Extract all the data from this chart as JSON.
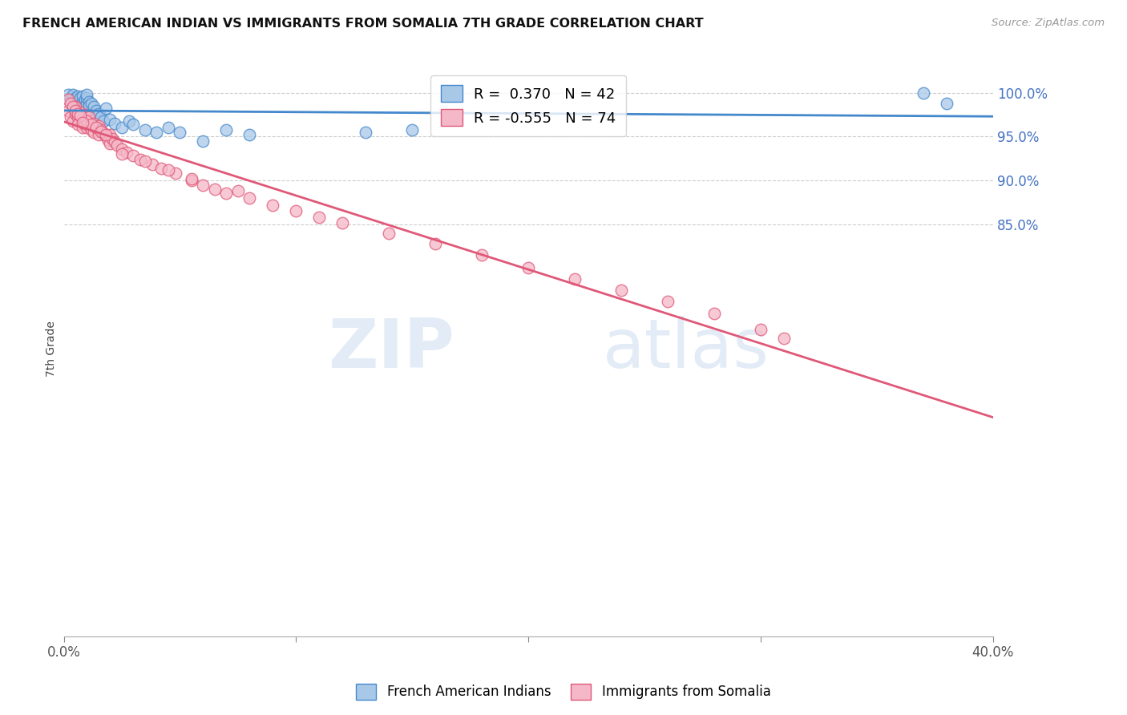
{
  "title": "FRENCH AMERICAN INDIAN VS IMMIGRANTS FROM SOMALIA 7TH GRADE CORRELATION CHART",
  "source": "Source: ZipAtlas.com",
  "ylabel": "7th Grade",
  "ytick_labels": [
    "100.0%",
    "95.0%",
    "90.0%",
    "85.0%"
  ],
  "ytick_values": [
    1.0,
    0.95,
    0.9,
    0.85
  ],
  "xlim": [
    0.0,
    0.4
  ],
  "ylim": [
    0.38,
    1.035
  ],
  "blue_R": 0.37,
  "blue_N": 42,
  "pink_R": -0.555,
  "pink_N": 74,
  "blue_color": "#a8c8e8",
  "pink_color": "#f5b8c8",
  "blue_line_color": "#4488cc",
  "pink_line_color": "#e05878",
  "watermark_zip": "ZIP",
  "watermark_atlas": "atlas",
  "legend_label_blue": "French American Indians",
  "legend_label_pink": "Immigrants from Somalia",
  "blue_x": [
    0.002,
    0.003,
    0.004,
    0.004,
    0.005,
    0.005,
    0.006,
    0.006,
    0.007,
    0.007,
    0.008,
    0.008,
    0.009,
    0.009,
    0.01,
    0.01,
    0.01,
    0.011,
    0.011,
    0.012,
    0.013,
    0.014,
    0.015,
    0.016,
    0.017,
    0.018,
    0.02,
    0.022,
    0.025,
    0.028,
    0.03,
    0.035,
    0.04,
    0.045,
    0.05,
    0.06,
    0.07,
    0.08,
    0.13,
    0.15,
    0.37,
    0.38
  ],
  "blue_y": [
    0.998,
    0.992,
    0.996,
    0.998,
    0.99,
    0.994,
    0.992,
    0.996,
    0.988,
    0.994,
    0.99,
    0.996,
    0.985,
    0.992,
    0.988,
    0.994,
    0.998,
    0.99,
    0.985,
    0.988,
    0.984,
    0.98,
    0.976,
    0.972,
    0.968,
    0.982,
    0.97,
    0.965,
    0.96,
    0.968,
    0.964,
    0.958,
    0.955,
    0.96,
    0.955,
    0.945,
    0.958,
    0.952,
    0.955,
    0.958,
    1.0,
    0.988
  ],
  "pink_x": [
    0.002,
    0.003,
    0.004,
    0.005,
    0.005,
    0.006,
    0.006,
    0.007,
    0.008,
    0.008,
    0.009,
    0.009,
    0.01,
    0.01,
    0.011,
    0.011,
    0.012,
    0.013,
    0.013,
    0.014,
    0.015,
    0.015,
    0.016,
    0.017,
    0.018,
    0.019,
    0.02,
    0.02,
    0.021,
    0.022,
    0.023,
    0.025,
    0.027,
    0.03,
    0.033,
    0.038,
    0.042,
    0.048,
    0.055,
    0.06,
    0.065,
    0.07,
    0.08,
    0.09,
    0.1,
    0.11,
    0.12,
    0.14,
    0.16,
    0.18,
    0.2,
    0.22,
    0.24,
    0.26,
    0.28,
    0.01,
    0.012,
    0.014,
    0.016,
    0.018,
    0.002,
    0.003,
    0.004,
    0.005,
    0.006,
    0.007,
    0.008,
    0.025,
    0.035,
    0.045,
    0.055,
    0.075,
    0.3,
    0.31
  ],
  "pink_y": [
    0.98,
    0.972,
    0.968,
    0.976,
    0.984,
    0.972,
    0.964,
    0.978,
    0.97,
    0.96,
    0.965,
    0.975,
    0.96,
    0.97,
    0.962,
    0.972,
    0.958,
    0.965,
    0.955,
    0.96,
    0.952,
    0.962,
    0.958,
    0.954,
    0.95,
    0.946,
    0.942,
    0.952,
    0.948,
    0.944,
    0.94,
    0.936,
    0.932,
    0.928,
    0.924,
    0.918,
    0.914,
    0.908,
    0.9,
    0.895,
    0.89,
    0.885,
    0.88,
    0.872,
    0.865,
    0.858,
    0.852,
    0.84,
    0.828,
    0.815,
    0.8,
    0.788,
    0.775,
    0.762,
    0.748,
    0.968,
    0.964,
    0.96,
    0.956,
    0.952,
    0.992,
    0.988,
    0.984,
    0.98,
    0.976,
    0.974,
    0.966,
    0.93,
    0.922,
    0.912,
    0.902,
    0.888,
    0.73,
    0.72
  ]
}
